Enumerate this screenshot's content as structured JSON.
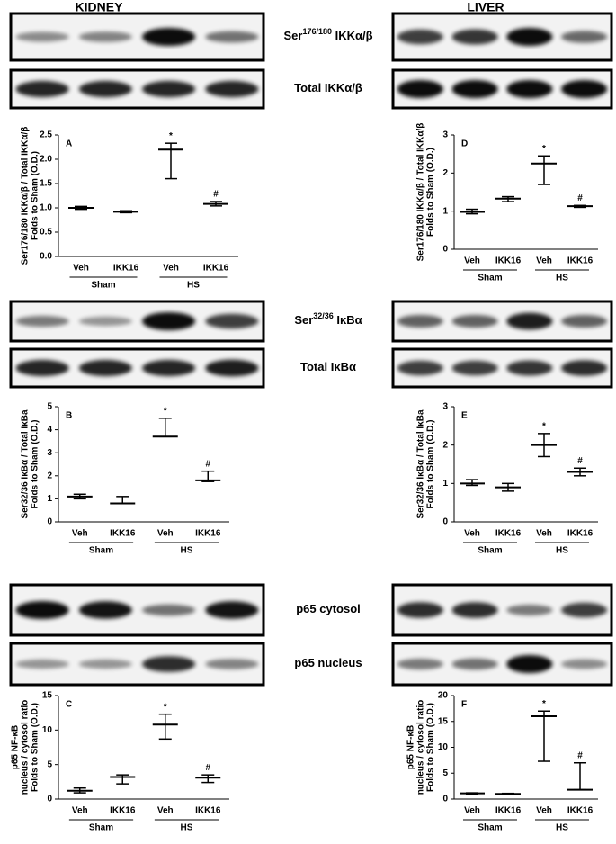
{
  "headers": [
    "KIDNEY",
    "LIVER"
  ],
  "blot_labels": [
    {
      "base": "Ser",
      "sup": "176/180",
      "rest": " IKKα/β"
    },
    {
      "base": "Total IKKα/β"
    },
    {
      "base": "Ser",
      "sup": "32/36",
      "rest": " IκBα"
    },
    {
      "base": "Total IκBα"
    },
    {
      "base": "p65 cytosol"
    },
    {
      "base": "p65 nucleus"
    }
  ],
  "chart_data": [
    {
      "type": "errorbar",
      "panel": "A",
      "color": "#000000",
      "ylabel": [
        "Ser176/180 IKKα/β / Total IKKα/β",
        "Folds to Sham (O.D.)"
      ],
      "categories": [
        "Veh",
        "IKK16",
        "Veh",
        "IKK16"
      ],
      "groups": [
        "Sham",
        "HS"
      ],
      "values": [
        1.0,
        0.92,
        2.2,
        1.08
      ],
      "lower": [
        0.97,
        0.9,
        1.6,
        1.04
      ],
      "upper": [
        1.03,
        0.94,
        2.33,
        1.13
      ],
      "annotations": [
        null,
        null,
        "*",
        "#"
      ],
      "ylim": [
        0,
        2.5
      ],
      "yticks": [
        {
          "value": 0,
          "label": "0.0"
        },
        {
          "value": 0.5,
          "label": "0.5"
        },
        {
          "value": 1,
          "label": "1.0"
        },
        {
          "value": 1.5,
          "label": "1.5"
        },
        {
          "value": 2,
          "label": "2.0"
        },
        {
          "value": 2.5,
          "label": "2.5"
        }
      ]
    },
    {
      "type": "errorbar",
      "panel": "D",
      "color": "#000000",
      "ylabel": [
        "Ser176/180 IKKα/β / Total IKKα/β",
        "Folds to Sham (O.D.)"
      ],
      "categories": [
        "Veh",
        "IKK16",
        "Veh",
        "IKK16"
      ],
      "groups": [
        "Sham",
        "HS"
      ],
      "values": [
        0.98,
        1.33,
        2.25,
        1.13
      ],
      "lower": [
        0.93,
        1.25,
        1.7,
        1.1
      ],
      "upper": [
        1.05,
        1.38,
        2.45,
        1.15
      ],
      "annotations": [
        null,
        null,
        "*",
        "#"
      ],
      "ylim": [
        0,
        3
      ],
      "yticks": [
        0,
        1,
        2,
        3
      ]
    },
    {
      "type": "errorbar",
      "panel": "B",
      "color": "#000000",
      "ylabel": [
        "Ser32/36 IκBα / Total IκBa",
        "Folds to Sham (O.D.)"
      ],
      "categories": [
        "Veh",
        "IKK16",
        "Veh",
        "IKK16"
      ],
      "groups": [
        "Sham",
        "HS"
      ],
      "values": [
        1.1,
        0.8,
        3.7,
        1.8
      ],
      "lower": [
        1.0,
        0.8,
        3.7,
        1.75
      ],
      "upper": [
        1.2,
        1.1,
        4.5,
        2.2
      ],
      "annotations": [
        null,
        null,
        "*",
        "#"
      ],
      "ylim": [
        0,
        5
      ],
      "yticks": [
        0,
        1,
        2,
        3,
        4,
        5
      ]
    },
    {
      "type": "errorbar",
      "panel": "E",
      "color": "#000000",
      "ylabel": [
        "Ser32/36 IκBα / Total IκBa",
        "Folds to Sham (O.D.)"
      ],
      "categories": [
        "Veh",
        "IKK16",
        "Veh",
        "IKK16"
      ],
      "groups": [
        "Sham",
        "HS"
      ],
      "values": [
        1.0,
        0.9,
        2.0,
        1.3
      ],
      "lower": [
        0.95,
        0.8,
        1.7,
        1.2
      ],
      "upper": [
        1.1,
        1.0,
        2.3,
        1.4
      ],
      "annotations": [
        null,
        null,
        "*",
        "#"
      ],
      "ylim": [
        0,
        3
      ],
      "yticks": [
        0,
        1,
        2,
        3
      ]
    },
    {
      "type": "errorbar",
      "panel": "C",
      "color": "#000000",
      "ylabel": [
        "p65 NF-κB",
        "nucleus / cytosol ratio",
        "Folds to Sham (O.D.)"
      ],
      "categories": [
        "Veh",
        "IKK16",
        "Veh",
        "IKK16"
      ],
      "groups": [
        "Sham",
        "HS"
      ],
      "values": [
        1.2,
        3.2,
        10.8,
        3.1
      ],
      "lower": [
        0.9,
        2.2,
        8.7,
        2.4
      ],
      "upper": [
        1.6,
        3.5,
        12.3,
        3.5
      ],
      "annotations": [
        null,
        null,
        "*",
        "#"
      ],
      "ylim": [
        0,
        15
      ],
      "yticks": [
        0,
        5,
        10,
        15
      ]
    },
    {
      "type": "errorbar",
      "panel": "F",
      "color": "#000000",
      "ylabel": [
        "p65 NF-κB",
        "nucleus / cytosol ratio",
        "Folds to Sham (O.D.)"
      ],
      "categories": [
        "Veh",
        "IKK16",
        "Veh",
        "IKK16"
      ],
      "groups": [
        "Sham",
        "HS"
      ],
      "values": [
        1.1,
        1.0,
        16,
        1.8
      ],
      "lower": [
        1.0,
        0.9,
        7.3,
        1.8
      ],
      "upper": [
        1.2,
        1.1,
        17,
        7
      ],
      "annotations": [
        null,
        null,
        "*",
        "#"
      ],
      "ylim": [
        0,
        20
      ],
      "yticks": [
        0,
        5,
        10,
        15,
        20
      ]
    }
  ]
}
